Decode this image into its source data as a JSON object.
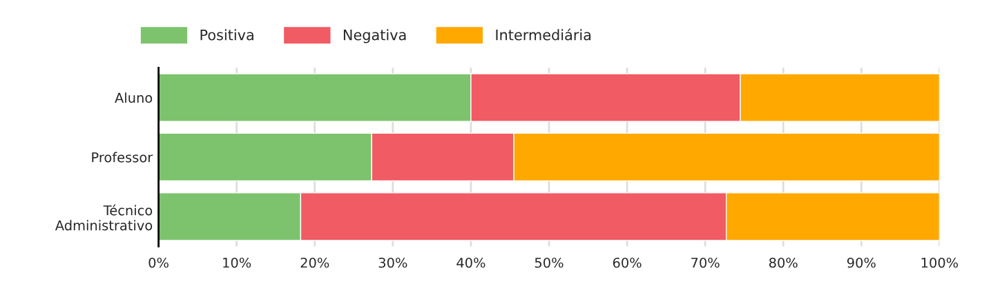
{
  "chart_data": {
    "type": "bar",
    "orientation": "horizontal",
    "stacked": true,
    "categories": [
      "Aluno",
      "Professor",
      "Técnico\nAdministrativo"
    ],
    "series": [
      {
        "name": "Positiva",
        "color": "#7dc36e",
        "values": [
          40.0,
          27.3,
          18.2
        ]
      },
      {
        "name": "Negativa",
        "color": "#f15b64",
        "values": [
          34.5,
          18.2,
          54.5
        ]
      },
      {
        "name": "Intermediária",
        "color": "#ffa800",
        "values": [
          25.5,
          54.5,
          27.3
        ]
      }
    ],
    "xlim": [
      0,
      100
    ],
    "xticks": [
      {
        "value": 0,
        "label": "0%"
      },
      {
        "value": 10,
        "label": "10%"
      },
      {
        "value": 20,
        "label": "20%"
      },
      {
        "value": 30,
        "label": "30%"
      },
      {
        "value": 40,
        "label": "40%"
      },
      {
        "value": 50,
        "label": "50%"
      },
      {
        "value": 60,
        "label": "60%"
      },
      {
        "value": 70,
        "label": "70%"
      },
      {
        "value": 80,
        "label": "80%"
      },
      {
        "value": 90,
        "label": "90%"
      },
      {
        "value": 100,
        "label": "100%"
      }
    ],
    "grid": "x",
    "legend": "top left"
  }
}
